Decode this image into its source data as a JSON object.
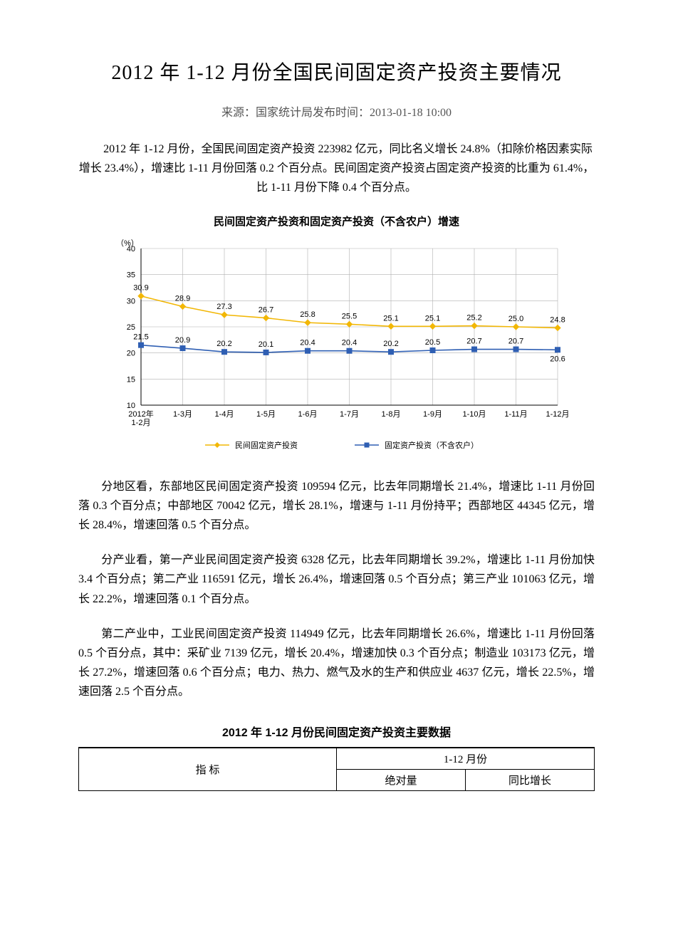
{
  "title": "2012 年 1-12 月份全国民间固定资产投资主要情况",
  "source_line": "来源：国家统计局发布时间：2013-01-18 10:00",
  "para1": "2012 年 1-12 月份，全国民间固定资产投资 223982 亿元，同比名义增长 24.8%（扣除价格因素实际增长 23.4%），增速比 1-11 月份回落 0.2 个百分点。民间固定资产投资占固定资产投资的比重为 61.4%，比 1-11 月份下降 0.4 个百分点。",
  "para2": "分地区看，东部地区民间固定资产投资 109594 亿元，比去年同期增长 21.4%，增速比 1-11 月份回落 0.3 个百分点；中部地区 70042 亿元，增长 28.1%，增速与 1-11 月份持平；西部地区 44345 亿元，增长 28.4%，增速回落 0.5 个百分点。",
  "para3": "分产业看，第一产业民间固定资产投资 6328 亿元，比去年同期增长 39.2%，增速比 1-11 月份加快 3.4 个百分点；第二产业 116591 亿元，增长 26.4%，增速回落 0.5 个百分点；第三产业 101063 亿元，增长 22.2%，增速回落 0.1 个百分点。",
  "para4": "第二产业中，工业民间固定资产投资 114949 亿元，比去年同期增长 26.6%，增速比 1-11 月份回落 0.5 个百分点，其中：采矿业 7139 亿元，增长 20.4%，增速加快 0.3 个百分点；制造业 103173 亿元，增长 27.2%，增速回落 0.6 个百分点；电力、热力、燃气及水的生产和供应业 4637 亿元，增长 22.5%，增速回落 2.5 个百分点。",
  "chart": {
    "title": "民间固定资产投资和固定资产投资（不含农户）增速",
    "y_unit": "（%）",
    "x_labels": [
      "2012年\n1-2月",
      "1-3月",
      "1-4月",
      "1-5月",
      "1-6月",
      "1-7月",
      "1-8月",
      "1-9月",
      "1-10月",
      "1-11月",
      "1-12月"
    ],
    "ylim": [
      10,
      40
    ],
    "ytick_step": 5,
    "series": [
      {
        "name": "民间固定资产投资",
        "color": "#f2b705",
        "marker": "diamond",
        "values": [
          30.9,
          28.9,
          27.3,
          26.7,
          25.8,
          25.5,
          25.1,
          25.1,
          25.2,
          25.0,
          24.8
        ],
        "label_dy": -10
      },
      {
        "name": "固定资产投资（不含农户）",
        "color": "#2f5fb3",
        "marker": "square",
        "values": [
          21.5,
          20.9,
          20.2,
          20.1,
          20.4,
          20.4,
          20.2,
          20.5,
          20.7,
          20.7,
          20.6
        ],
        "label_dy": -10
      }
    ],
    "grid_color": "#b0b0b0",
    "axis_color": "#000000",
    "background": "#ffffff",
    "font_size_axis": 11,
    "font_size_label": 11,
    "line_width": 1.6
  },
  "table": {
    "title": "2012 年 1-12 月份民间固定资产投资主要数据",
    "col_group": "1-12 月份",
    "col1": "指  标",
    "col2": "绝对量",
    "col3": "同比增长"
  }
}
